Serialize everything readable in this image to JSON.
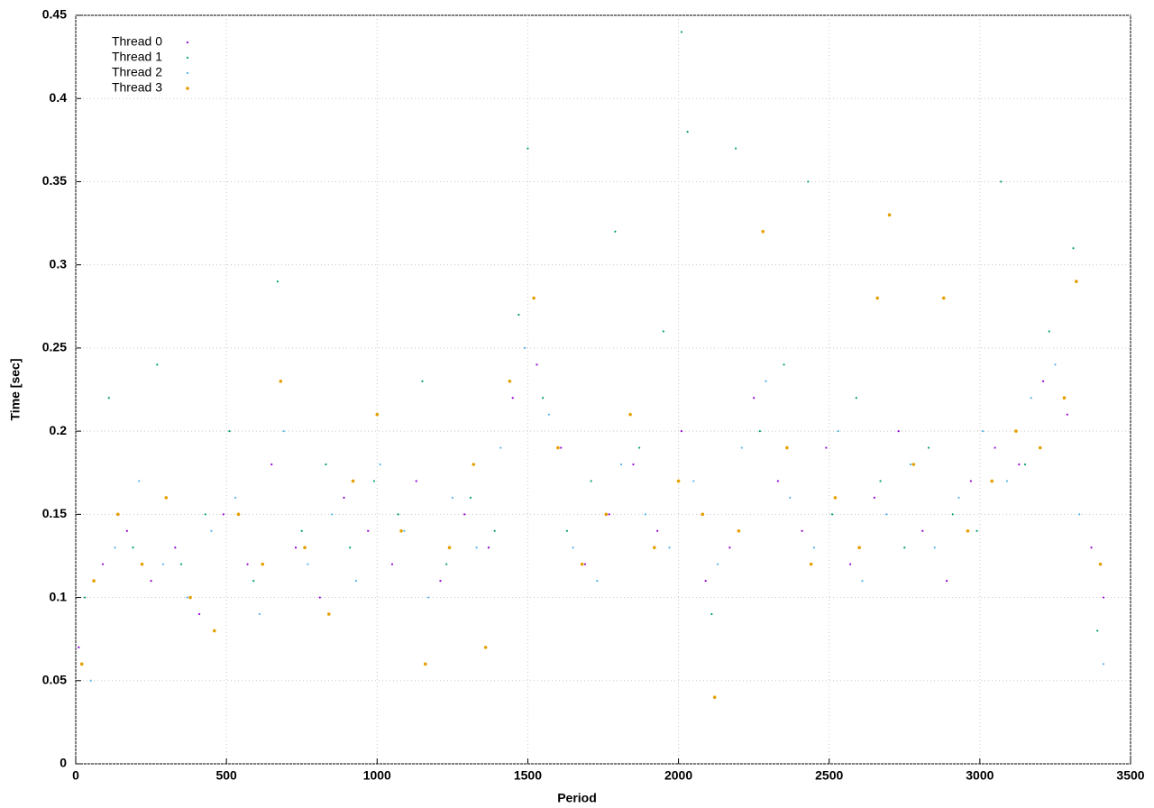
{
  "chart_data": {
    "type": "scatter",
    "x_label": "Period",
    "y_label": "Time [sec]",
    "xlim": [
      0,
      3500
    ],
    "xticks": [
      0,
      500,
      1000,
      1500,
      2000,
      2500,
      3000,
      3500
    ],
    "ylim": [
      0,
      0.45
    ],
    "yticks": [
      0,
      0.05,
      0.1,
      0.15,
      0.2,
      0.25,
      0.3,
      0.35,
      0.4,
      0.45
    ],
    "grid": true,
    "legend": "top-left",
    "series": [
      {
        "name": "Thread 0",
        "color": "#9400d3",
        "x": [
          10,
          90,
          170,
          250,
          330,
          410,
          490,
          570,
          650,
          730,
          810,
          890,
          970,
          1050,
          1130,
          1210,
          1290,
          1370,
          1450,
          1530,
          1610,
          1690,
          1770,
          1850,
          1930,
          2010,
          2090,
          2170,
          2250,
          2330,
          2410,
          2490,
          2570,
          2650,
          2730,
          2810,
          2890,
          2970,
          3050,
          3130,
          3210,
          3290,
          3370,
          3410
        ],
        "values": [
          0.07,
          0.12,
          0.14,
          0.11,
          0.13,
          0.09,
          0.15,
          0.12,
          0.18,
          0.13,
          0.1,
          0.16,
          0.14,
          0.12,
          0.17,
          0.11,
          0.15,
          0.13,
          0.22,
          0.24,
          0.19,
          0.12,
          0.15,
          0.18,
          0.14,
          0.2,
          0.11,
          0.13,
          0.22,
          0.17,
          0.14,
          0.19,
          0.12,
          0.16,
          0.2,
          0.14,
          0.11,
          0.17,
          0.19,
          0.18,
          0.23,
          0.21,
          0.13,
          0.1
        ]
      },
      {
        "name": "Thread 1",
        "color": "#009e73",
        "x": [
          30,
          110,
          190,
          270,
          350,
          430,
          510,
          590,
          670,
          750,
          830,
          910,
          990,
          1070,
          1150,
          1230,
          1310,
          1390,
          1470,
          1500,
          1550,
          1630,
          1710,
          1790,
          1870,
          1950,
          2010,
          2030,
          2110,
          2190,
          2270,
          2350,
          2430,
          2510,
          2590,
          2670,
          2750,
          2830,
          2910,
          2990,
          3070,
          3150,
          3230,
          3310,
          3390
        ],
        "values": [
          0.1,
          0.22,
          0.13,
          0.24,
          0.12,
          0.15,
          0.2,
          0.11,
          0.29,
          0.14,
          0.18,
          0.13,
          0.17,
          0.15,
          0.23,
          0.12,
          0.16,
          0.14,
          0.27,
          0.37,
          0.22,
          0.14,
          0.17,
          0.32,
          0.19,
          0.26,
          0.44,
          0.38,
          0.09,
          0.37,
          0.2,
          0.24,
          0.35,
          0.15,
          0.22,
          0.17,
          0.13,
          0.19,
          0.15,
          0.14,
          0.35,
          0.18,
          0.26,
          0.31,
          0.08
        ]
      },
      {
        "name": "Thread 2",
        "color": "#56b4e9",
        "x": [
          50,
          130,
          210,
          290,
          370,
          450,
          530,
          610,
          690,
          770,
          850,
          930,
          1010,
          1090,
          1170,
          1250,
          1330,
          1410,
          1490,
          1570,
          1650,
          1730,
          1810,
          1890,
          1970,
          2050,
          2130,
          2210,
          2290,
          2370,
          2450,
          2530,
          2610,
          2690,
          2770,
          2850,
          2930,
          3010,
          3090,
          3170,
          3250,
          3330,
          3410
        ],
        "values": [
          0.05,
          0.13,
          0.17,
          0.12,
          0.1,
          0.14,
          0.16,
          0.09,
          0.2,
          0.12,
          0.15,
          0.11,
          0.18,
          0.14,
          0.1,
          0.16,
          0.13,
          0.19,
          0.25,
          0.21,
          0.13,
          0.11,
          0.18,
          0.15,
          0.13,
          0.17,
          0.12,
          0.19,
          0.23,
          0.16,
          0.13,
          0.2,
          0.11,
          0.15,
          0.18,
          0.13,
          0.16,
          0.2,
          0.17,
          0.22,
          0.24,
          0.15,
          0.06
        ]
      },
      {
        "name": "Thread 3",
        "color": "#e69f00",
        "x": [
          20,
          60,
          140,
          220,
          300,
          380,
          460,
          540,
          620,
          680,
          760,
          840,
          920,
          1000,
          1080,
          1160,
          1240,
          1320,
          1360,
          1440,
          1520,
          1600,
          1680,
          1760,
          1840,
          1920,
          2000,
          2080,
          2120,
          2200,
          2280,
          2360,
          2440,
          2520,
          2600,
          2660,
          2700,
          2780,
          2880,
          2960,
          3040,
          3120,
          3200,
          3280,
          3320,
          3400
        ],
        "values": [
          0.06,
          0.11,
          0.15,
          0.12,
          0.16,
          0.1,
          0.08,
          0.15,
          0.12,
          0.23,
          0.13,
          0.09,
          0.17,
          0.21,
          0.14,
          0.06,
          0.13,
          0.18,
          0.07,
          0.23,
          0.28,
          0.19,
          0.12,
          0.15,
          0.21,
          0.13,
          0.17,
          0.15,
          0.04,
          0.14,
          0.32,
          0.19,
          0.12,
          0.16,
          0.13,
          0.28,
          0.33,
          0.18,
          0.28,
          0.14,
          0.17,
          0.2,
          0.19,
          0.22,
          0.29,
          0.12
        ]
      }
    ]
  }
}
